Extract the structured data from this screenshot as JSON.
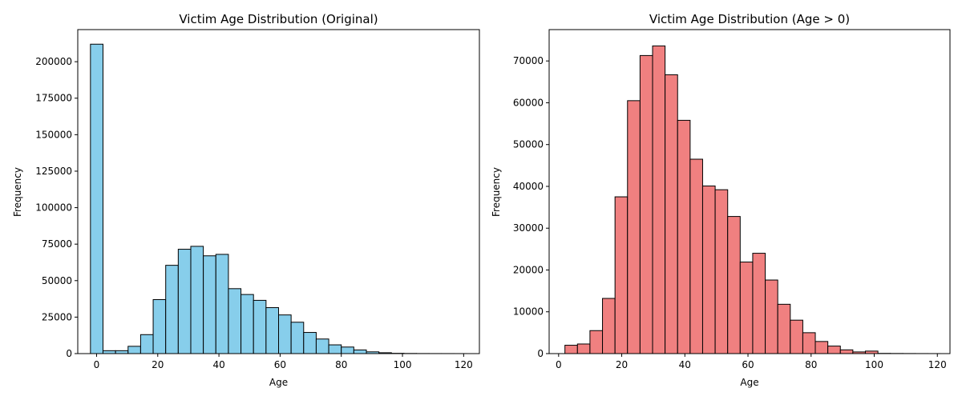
{
  "chart_data": [
    {
      "type": "bar",
      "title": "Victim Age Distribution (Original)",
      "xlabel": "Age",
      "ylabel": "Frequency",
      "bar_color": "#87ceeb",
      "edge_color": "#000000",
      "xlim": [
        -6.15,
        125.15
      ],
      "ylim": [
        0,
        222000
      ],
      "xticks": [
        0,
        20,
        40,
        60,
        80,
        100,
        120
      ],
      "yticks": [
        0,
        25000,
        50000,
        75000,
        100000,
        125000,
        150000,
        175000,
        200000
      ],
      "bin_edges": [
        -2,
        2.1,
        6.2,
        10.3,
        14.4,
        18.5,
        22.6,
        26.7,
        30.8,
        34.9,
        39,
        43.1,
        47.2,
        51.3,
        55.4,
        59.5,
        63.6,
        67.7,
        71.8,
        75.9,
        80,
        84.1,
        88.2,
        92.3,
        96.4,
        100.5,
        104.6,
        108.7,
        112.8,
        116.9,
        121
      ],
      "values": [
        212000,
        2000,
        2000,
        5000,
        13000,
        37000,
        60500,
        71500,
        73500,
        67000,
        68000,
        44500,
        40500,
        36500,
        31500,
        26500,
        21500,
        14500,
        10000,
        6000,
        4500,
        2500,
        1200,
        600,
        200,
        100,
        50,
        30,
        20,
        10
      ]
    },
    {
      "type": "bar",
      "title": "Victim Age Distribution (Age > 0)",
      "xlabel": "Age",
      "ylabel": "Frequency",
      "bar_color": "#f08080",
      "edge_color": "#000000",
      "xlim": [
        -3,
        124
      ],
      "ylim": [
        0,
        77500
      ],
      "xticks": [
        0,
        20,
        40,
        60,
        80,
        100,
        120
      ],
      "yticks": [
        0,
        10000,
        20000,
        30000,
        40000,
        50000,
        60000,
        70000
      ],
      "bin_edges": [
        2,
        5.97,
        9.93,
        13.9,
        17.87,
        21.83,
        25.8,
        29.77,
        33.73,
        37.7,
        41.67,
        45.63,
        49.6,
        53.57,
        57.53,
        61.5,
        65.47,
        69.43,
        73.4,
        77.37,
        81.33,
        85.3,
        89.27,
        93.23,
        97.2,
        101.17,
        105.13,
        109.1,
        113.07,
        117.03,
        121
      ],
      "values": [
        2000,
        2300,
        5500,
        13200,
        37500,
        60500,
        71300,
        73600,
        66700,
        55800,
        46500,
        40100,
        39200,
        32800,
        21900,
        24000,
        17600,
        11800,
        8000,
        5000,
        2900,
        1800,
        900,
        400,
        600,
        50,
        30,
        20,
        10,
        5
      ]
    }
  ]
}
